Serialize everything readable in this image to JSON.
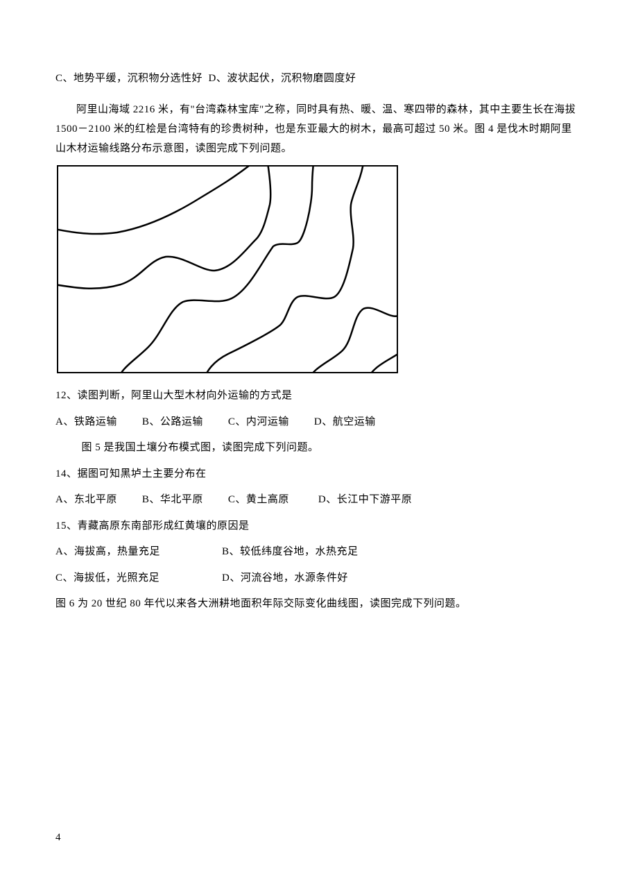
{
  "top_options": {
    "c": "C、地势平缓，沉积物分选性好",
    "d": "D、波状起伏，沉积物磨圆度好"
  },
  "passage1": "阿里山海域 2216 米，有\"台湾森林宝库\"之称，同时具有热、暖、温、寒四带的森林，其中主要生长在海拔 1500－2100 米的红桧是台湾特有的珍贵树种，也是东亚最大的树木，最高可超过 50 米。图 4 是伐木时期阿里山木材运输线路分布示意图，读图完成下列问题。",
  "map": {
    "stroke_color": "#000000",
    "stroke_width": 2.5,
    "border_color": "#000000",
    "bg_color": "#ffffff",
    "paths": [
      "M -5 90 C 20 95, 50 100, 85 95 C 125 88, 165 70, 205 45 C 230 30, 255 15, 280 -5",
      "M -5 170 C 25 175, 55 180, 90 170 C 120 160, 130 135, 155 130 C 180 128, 205 150, 225 150 C 250 148, 270 120, 285 105 C 295 95, 300 75, 305 55 C 308 40, 305 15, 302 -5",
      "M 85 310 C 90 290, 110 280, 130 260 C 150 240, 160 205, 180 195 C 200 188, 230 200, 250 190 C 275 178, 295 135, 310 115 C 320 108, 335 115, 345 110 C 355 105, 366 55, 366 30 C 366 15, 367 5, 368 -5",
      "M 210 310 C 212 295, 225 280, 245 270 C 270 258, 305 240, 318 230 C 330 222, 332 195, 345 188 C 358 182, 385 195, 398 188 C 412 180, 420 140, 425 118 C 428 100, 420 75, 422 55 C 424 40, 436 20, 440 -5",
      "M 360 310 C 365 290, 395 280, 410 265 C 425 250, 425 215, 440 205 C 455 198, 478 220, 490 215",
      "M 445 310 C 450 290, 475 280, 490 270"
    ]
  },
  "q12": {
    "text": "12、读图判断，阿里山大型木材向外运输的方式是",
    "a": "A、铁路运输",
    "b": "B、公路运输",
    "c": "C、内河运输",
    "d": "D、航空运输"
  },
  "fig5_caption": "图 5 是我国土壤分布模式图，读图完成下列问题。",
  "q14": {
    "text": "14、据图可知黑垆土主要分布在",
    "a": "A、东北平原",
    "b": "B、华北平原",
    "c": "C、黄土高原",
    "d": "D、长江中下游平原"
  },
  "q15": {
    "text": "15、青藏高原东南部形成红黄壤的原因是",
    "a": "A、海拔高，热量充足",
    "b": "B、较低纬度谷地，水热充足",
    "c": "C、海拔低，光照充足",
    "d": "D、河流谷地，水源条件好"
  },
  "fig6_text": "图 6 为 20 世纪 80 年代以来各大洲耕地面积年际交际变化曲线图，读图完成下列问题。",
  "page_number": "4"
}
